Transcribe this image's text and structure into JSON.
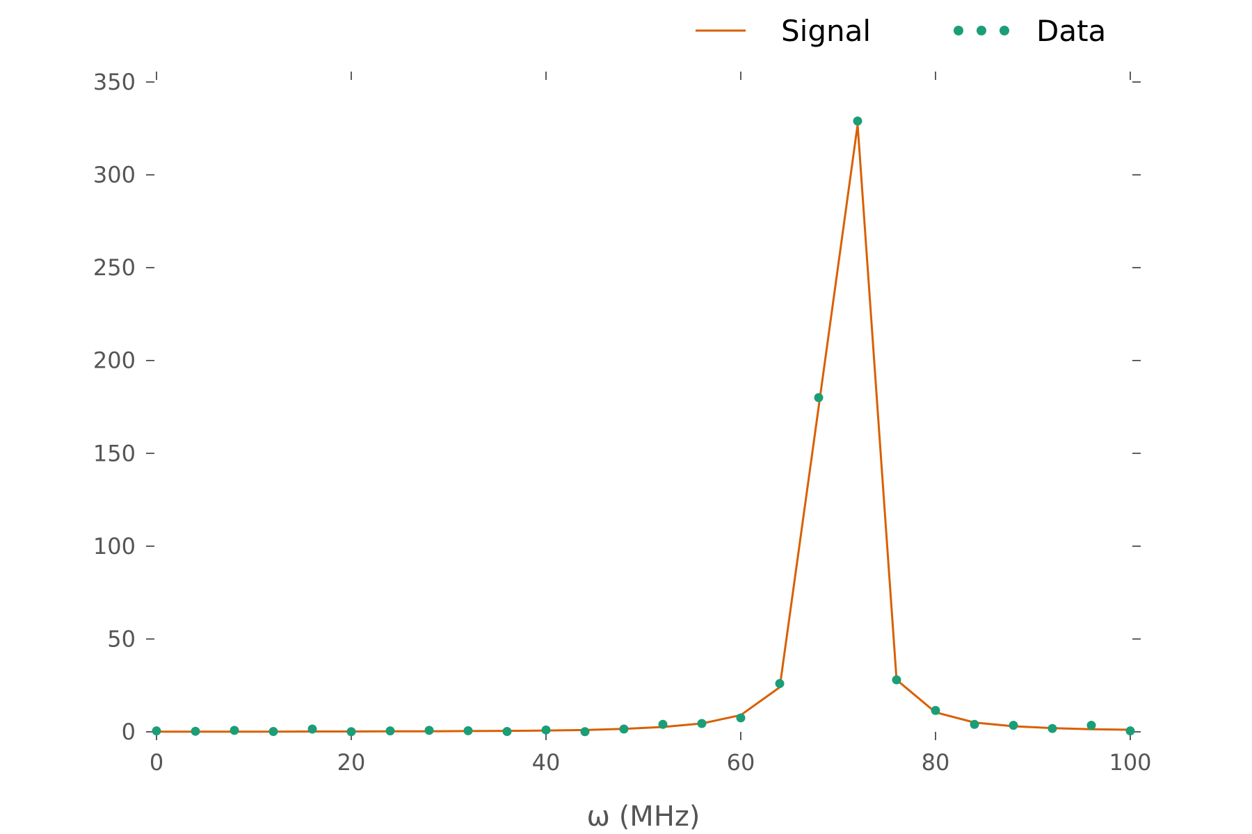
{
  "chart_data": {
    "type": "line",
    "title": "",
    "xlabel": "ω (MHz)",
    "ylabel": "",
    "xlim": [
      0,
      100
    ],
    "ylim": [
      0,
      350
    ],
    "xticks": [
      0,
      20,
      40,
      60,
      80,
      100
    ],
    "yticks": [
      0,
      50,
      100,
      150,
      200,
      250,
      300,
      350
    ],
    "xtick_labels": [
      "0",
      "20",
      "40",
      "60",
      "80",
      "100"
    ],
    "ytick_labels": [
      "0",
      "50",
      "100",
      "150",
      "200",
      "250",
      "300",
      "350"
    ],
    "grid": false,
    "legend_position": "top-right",
    "series": [
      {
        "name": "Signal",
        "style": "line",
        "color": "#d95f02",
        "x": [
          0,
          4,
          8,
          12,
          16,
          20,
          24,
          28,
          32,
          36,
          40,
          44,
          48,
          52,
          56,
          60,
          64,
          68,
          72,
          76,
          80,
          84,
          88,
          92,
          96,
          100
        ],
        "y": [
          0.1,
          0.1,
          0.1,
          0.1,
          0.2,
          0.2,
          0.3,
          0.3,
          0.4,
          0.5,
          0.7,
          1.0,
          1.6,
          2.6,
          4.5,
          9.0,
          24,
          175,
          327,
          28,
          10.5,
          5.0,
          3.0,
          2.0,
          1.4,
          1.1
        ]
      },
      {
        "name": "Data",
        "style": "markers",
        "color": "#1b9e77",
        "x": [
          0,
          4,
          8,
          12,
          16,
          20,
          24,
          28,
          32,
          36,
          40,
          44,
          48,
          52,
          56,
          60,
          64,
          68,
          72,
          76,
          80,
          84,
          88,
          92,
          96,
          100
        ],
        "y": [
          0.5,
          0.3,
          0.8,
          0.2,
          1.5,
          0.1,
          0.5,
          0.8,
          0.6,
          0.2,
          1.0,
          0.1,
          1.5,
          4.0,
          4.5,
          7.5,
          26,
          180,
          329,
          28,
          11.5,
          4.0,
          3.5,
          1.8,
          3.5,
          0.5
        ]
      }
    ]
  }
}
